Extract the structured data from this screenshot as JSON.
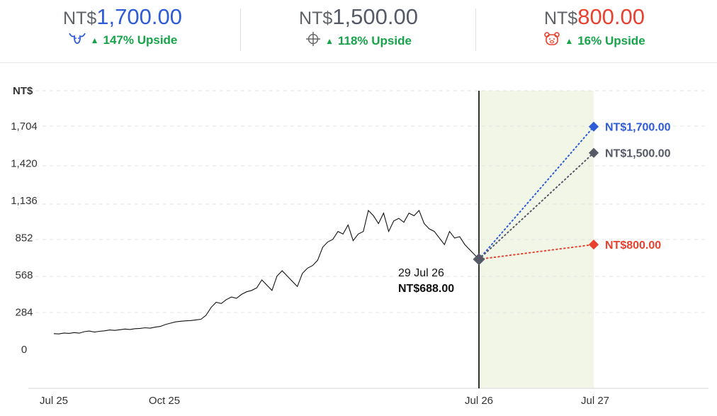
{
  "header": {
    "targets": [
      {
        "currency": "NT$",
        "value": "1,700.00",
        "upside": "147% Upside",
        "color": "#2e5bd6",
        "icon": "bull-icon"
      },
      {
        "currency": "NT$",
        "value": "1,500.00",
        "upside": "118% Upside",
        "color": "#555a66",
        "icon": "crosshair-icon"
      },
      {
        "currency": "NT$",
        "value": "800.00",
        "upside": "16% Upside",
        "color": "#e8412f",
        "icon": "bear-icon"
      }
    ],
    "upside_color": "#17a34a"
  },
  "chart_data": {
    "type": "line",
    "ylabel": "NT$",
    "y_ticks": [
      0,
      284,
      568,
      852,
      1136,
      1420,
      1704
    ],
    "y_tick_labels": [
      "0",
      "284",
      "568",
      "852",
      "1,136",
      "1,420",
      "1,704"
    ],
    "x_ticks": [
      "Jul 25",
      "Oct 25",
      "Jul 26",
      "Jul 27"
    ],
    "series": [
      {
        "values": [
          [
            0,
            120
          ],
          [
            5,
            118
          ],
          [
            10,
            125
          ],
          [
            15,
            122
          ],
          [
            20,
            128
          ],
          [
            25,
            124
          ],
          [
            30,
            135
          ],
          [
            35,
            140
          ],
          [
            40,
            132
          ],
          [
            45,
            138
          ],
          [
            50,
            142
          ],
          [
            55,
            148
          ],
          [
            60,
            145
          ],
          [
            65,
            150
          ],
          [
            70,
            155
          ],
          [
            75,
            152
          ],
          [
            80,
            158
          ],
          [
            85,
            160
          ],
          [
            90,
            165
          ],
          [
            95,
            162
          ],
          [
            100,
            170
          ],
          [
            105,
            175
          ],
          [
            110,
            190
          ],
          [
            115,
            200
          ],
          [
            120,
            210
          ],
          [
            125,
            215
          ],
          [
            130,
            218
          ],
          [
            135,
            220
          ],
          [
            140,
            225
          ],
          [
            145,
            230
          ],
          [
            150,
            260
          ],
          [
            155,
            320
          ],
          [
            160,
            360
          ],
          [
            165,
            350
          ],
          [
            170,
            380
          ],
          [
            175,
            400
          ],
          [
            180,
            390
          ],
          [
            185,
            420
          ],
          [
            190,
            440
          ],
          [
            195,
            450
          ],
          [
            200,
            470
          ],
          [
            205,
            530
          ],
          [
            210,
            490
          ],
          [
            215,
            450
          ],
          [
            220,
            560
          ],
          [
            225,
            600
          ],
          [
            230,
            560
          ],
          [
            235,
            520
          ],
          [
            240,
            480
          ],
          [
            245,
            580
          ],
          [
            250,
            620
          ],
          [
            255,
            640
          ],
          [
            260,
            680
          ],
          [
            265,
            780
          ],
          [
            270,
            820
          ],
          [
            275,
            840
          ],
          [
            280,
            900
          ],
          [
            285,
            880
          ],
          [
            290,
            950
          ],
          [
            295,
            830
          ],
          [
            300,
            880
          ],
          [
            305,
            900
          ],
          [
            310,
            1060
          ],
          [
            315,
            1020
          ],
          [
            320,
            960
          ],
          [
            325,
            1040
          ],
          [
            330,
            900
          ],
          [
            335,
            980
          ],
          [
            340,
            1000
          ],
          [
            345,
            970
          ],
          [
            350,
            1040
          ],
          [
            355,
            1020
          ],
          [
            360,
            1060
          ],
          [
            365,
            960
          ],
          [
            370,
            920
          ],
          [
            375,
            900
          ],
          [
            380,
            850
          ],
          [
            385,
            800
          ],
          [
            390,
            900
          ],
          [
            395,
            850
          ],
          [
            400,
            860
          ],
          [
            405,
            800
          ],
          [
            410,
            760
          ],
          [
            415,
            720
          ],
          [
            419,
            688
          ]
        ]
      }
    ],
    "current": {
      "date": "29 Jul 26",
      "price": 688,
      "label": "NT$688.00"
    },
    "targets": [
      {
        "price": 1700,
        "label": "NT$1,700.00",
        "color": "#2e5bd6"
      },
      {
        "price": 1500,
        "label": "NT$1,500.00",
        "color": "#555a66"
      },
      {
        "price": 800,
        "label": "NT$800.00",
        "color": "#e8412f"
      }
    ],
    "forecast_band_color": "#f1f6e7",
    "line_color": "#111111",
    "grid": "horizontal dashed"
  }
}
